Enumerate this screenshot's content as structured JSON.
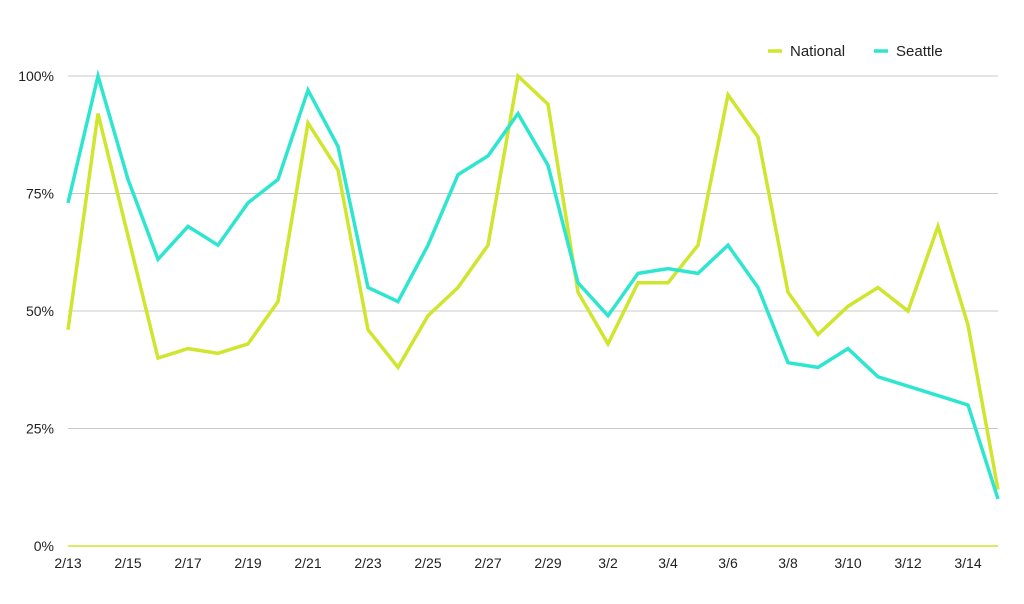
{
  "chart_data": {
    "type": "line",
    "title": "",
    "xlabel": "",
    "ylabel": "",
    "x": [
      "2/13",
      "2/14",
      "2/15",
      "2/16",
      "2/17",
      "2/18",
      "2/19",
      "2/20",
      "2/21",
      "2/22",
      "2/23",
      "2/24",
      "2/25",
      "2/26",
      "2/27",
      "2/28",
      "2/29",
      "3/1",
      "3/2",
      "3/3",
      "3/4",
      "3/5",
      "3/6",
      "3/7",
      "3/8",
      "3/9",
      "3/10",
      "3/11",
      "3/12",
      "3/13",
      "3/14",
      "3/15"
    ],
    "x_tick_labels": [
      "2/13",
      "2/15",
      "2/17",
      "2/19",
      "2/21",
      "2/23",
      "2/25",
      "2/27",
      "2/29",
      "3/2",
      "3/4",
      "3/6",
      "3/8",
      "3/10",
      "3/12",
      "3/14"
    ],
    "y_ticks": [
      0,
      25,
      50,
      75,
      100
    ],
    "y_tick_labels": [
      "0%",
      "25%",
      "50%",
      "75%",
      "100%"
    ],
    "ylim": [
      0,
      100
    ],
    "grid": true,
    "legend_position": "top-right",
    "series": [
      {
        "name": "National",
        "color": "#cfe52e",
        "values": [
          46,
          92,
          66,
          40,
          42,
          41,
          43,
          52,
          90,
          80,
          46,
          38,
          49,
          55,
          64,
          100,
          94,
          54,
          43,
          56,
          56,
          64,
          96,
          87,
          54,
          45,
          51,
          55,
          50,
          68,
          47,
          12
        ]
      },
      {
        "name": "Seattle",
        "color": "#2ee6cf",
        "values": [
          73,
          100,
          78,
          61,
          68,
          64,
          73,
          78,
          97,
          85,
          55,
          52,
          64,
          79,
          83,
          92,
          81,
          56,
          49,
          58,
          59,
          58,
          64,
          55,
          39,
          38,
          42,
          36,
          34,
          32,
          30,
          10
        ]
      }
    ]
  }
}
